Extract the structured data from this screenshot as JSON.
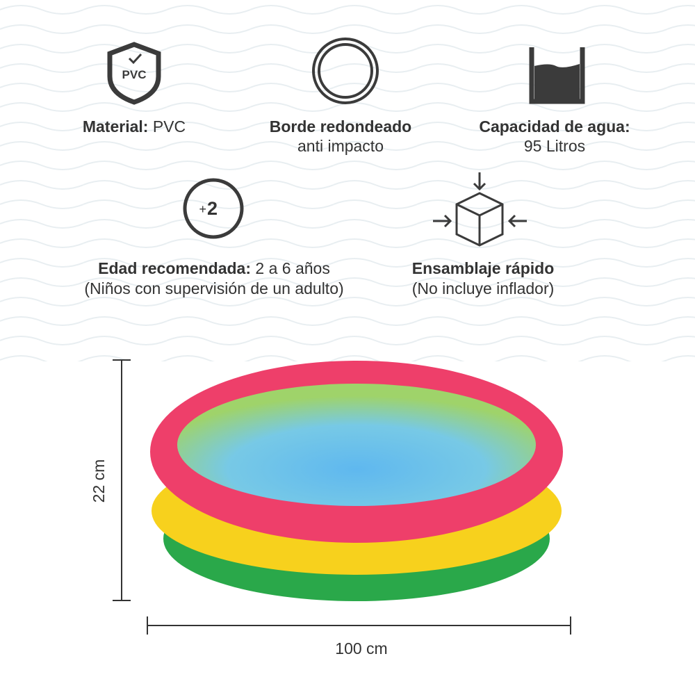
{
  "features": [
    {
      "icon_text": "PVC",
      "label": "Material:",
      "value": "PVC"
    },
    {
      "label": "Borde redondeado",
      "value": "anti impacto"
    },
    {
      "label": "Capacidad de agua:",
      "value": "95 Litros"
    },
    {
      "icon_text": [
        "+",
        "2"
      ],
      "label": "Edad recomendada:",
      "value": "2 a 6 años",
      "note": "(Niños con supervisión de un adulto)"
    },
    {
      "label": "Ensamblaje rápido",
      "note": "(No incluye inflador)"
    }
  ],
  "dimensions": {
    "height": "22 cm",
    "width": "100 cm"
  }
}
